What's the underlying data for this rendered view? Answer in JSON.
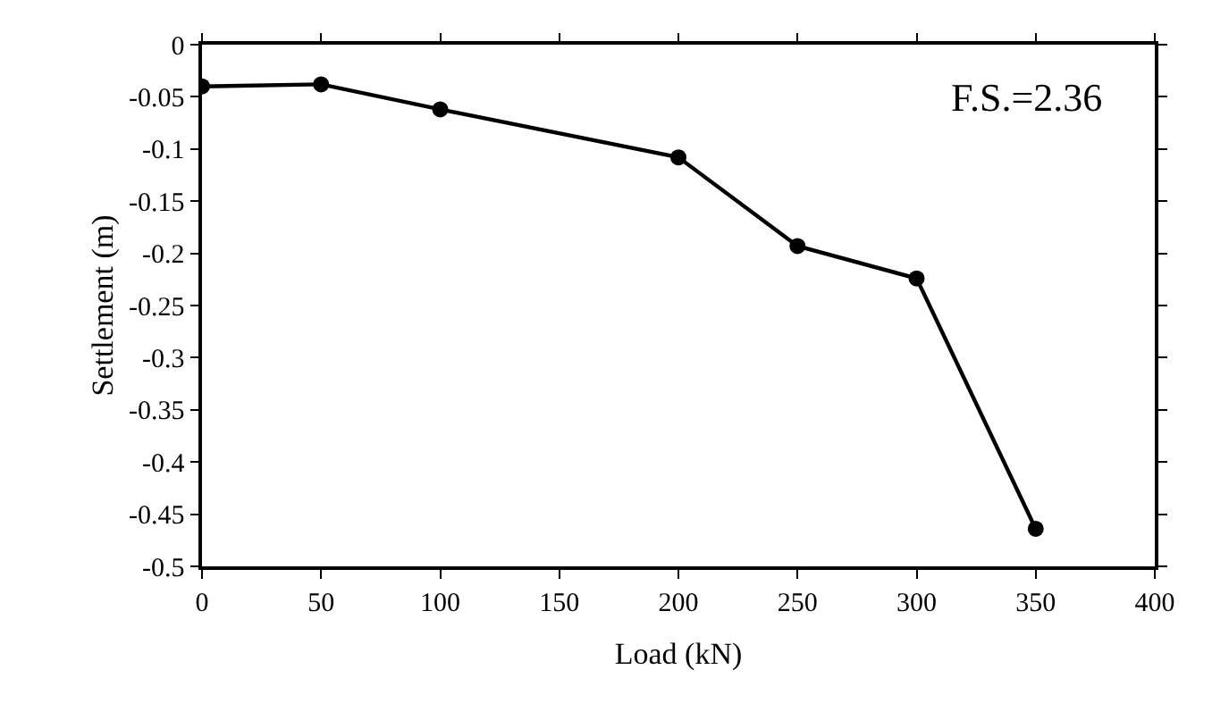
{
  "chart_data": {
    "type": "line",
    "xlabel": "Load (kN)",
    "ylabel": "Settlement (m)",
    "x": [
      0,
      50,
      100,
      200,
      250,
      300,
      350
    ],
    "series": [
      {
        "color": "#000000",
        "values": [
          -0.04,
          -0.038,
          -0.062,
          -0.108,
          -0.193,
          -0.224,
          -0.464
        ]
      }
    ],
    "xlim": [
      0,
      400
    ],
    "xticks": [
      0,
      50,
      100,
      150,
      200,
      250,
      300,
      350,
      400
    ],
    "ylim": [
      -0.5,
      0
    ],
    "yticks": [
      0,
      -0.05,
      -0.1,
      -0.15,
      -0.2,
      -0.25,
      -0.3,
      -0.35,
      -0.4,
      -0.45,
      -0.5
    ],
    "annotations": [
      "F.S.=2.36"
    ],
    "marker": "circle",
    "line_style": "solid"
  }
}
